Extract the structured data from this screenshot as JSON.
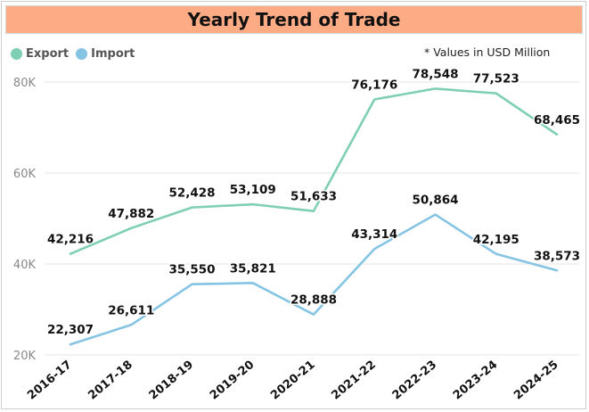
{
  "title": "Yearly Trend of Trade",
  "note": "* Values in USD Million",
  "legend": [
    {
      "name": "Export",
      "color": "#7fcfb3"
    },
    {
      "name": "Import",
      "color": "#86c4e4"
    }
  ],
  "colors": {
    "export": "#7fcfb3",
    "import": "#86c4e4",
    "title_bg": "#fdab84",
    "grid": "#e6e6e6"
  },
  "chart_data": {
    "type": "line",
    "title": "Yearly Trend of Trade",
    "categories": [
      "2016-17",
      "2017-18",
      "2018-19",
      "2019-20",
      "2020-21",
      "2021-22",
      "2022-23",
      "2023-24",
      "2024-25"
    ],
    "series": [
      {
        "name": "Export",
        "values": [
          42216,
          47882,
          52428,
          53109,
          51633,
          76176,
          78548,
          77523,
          68465
        ],
        "labels": [
          "42,216",
          "47,882",
          "52,428",
          "53,109",
          "51,633",
          "76,176",
          "78,548",
          "77,523",
          "68,465"
        ]
      },
      {
        "name": "Import",
        "values": [
          22307,
          26611,
          35550,
          35821,
          28888,
          43314,
          50864,
          42195,
          38573
        ],
        "labels": [
          "22,307",
          "26,611",
          "35,550",
          "35,821",
          "28,888",
          "43,314",
          "50,864",
          "42,195",
          "38,573"
        ]
      }
    ],
    "y_ticks": [
      20000,
      40000,
      60000,
      80000
    ],
    "y_tick_labels": [
      "20K",
      "40K",
      "60K",
      "80K"
    ],
    "ylim": [
      20000,
      80000
    ],
    "grid": true,
    "legend_position": "top-left"
  }
}
